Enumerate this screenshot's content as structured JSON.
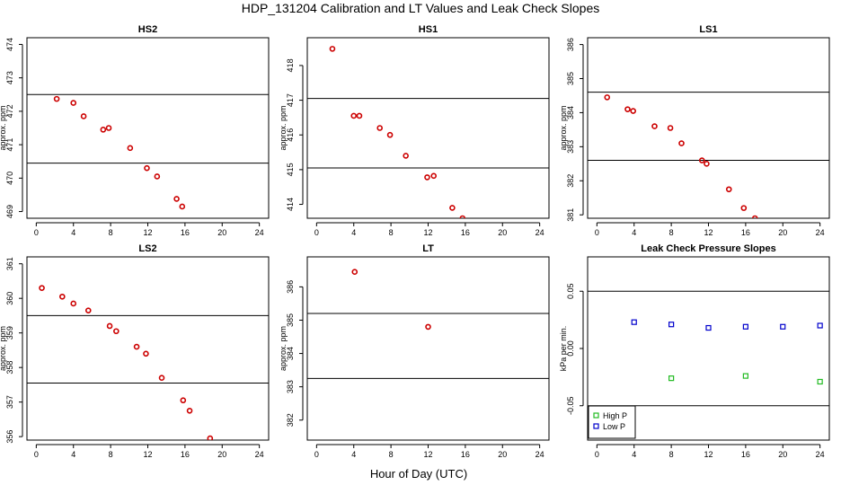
{
  "title": "HDP_131204  Calibration and LT Values and Leak Check Slopes",
  "xlabel": "Hour of Day (UTC)",
  "colors": {
    "calib": "#cc0000",
    "high_p": "#22bb22",
    "low_p": "#0000cc"
  },
  "chart_data": [
    {
      "id": "hs2",
      "type": "scatter",
      "title": "HS2",
      "ylabel": "approx. ppm",
      "xlim": [
        -1,
        25
      ],
      "ylim": [
        468.8,
        474.2
      ],
      "xticks": [
        0,
        4,
        8,
        12,
        16,
        20,
        24
      ],
      "yticks": [
        469,
        470,
        471,
        472,
        473,
        474
      ],
      "hlines": [
        470.45,
        472.5
      ],
      "series": [
        {
          "color": "#cc0000",
          "x": [
            2.2,
            4.0,
            5.1,
            7.2,
            7.8,
            10.1,
            11.9,
            13.0,
            15.1,
            15.7
          ],
          "y": [
            472.37,
            472.25,
            471.85,
            471.45,
            471.5,
            470.9,
            470.3,
            470.05,
            469.38,
            469.15
          ]
        }
      ]
    },
    {
      "id": "hs1",
      "type": "scatter",
      "title": "HS1",
      "ylabel": "approx. ppm",
      "xlim": [
        -1,
        25
      ],
      "ylim": [
        413.6,
        418.8
      ],
      "xticks": [
        0,
        4,
        8,
        12,
        16,
        20,
        24
      ],
      "yticks": [
        414,
        415,
        416,
        417,
        418
      ],
      "hlines": [
        415.05,
        417.05
      ],
      "series": [
        {
          "color": "#cc0000",
          "x": [
            1.7,
            4.0,
            4.6,
            6.8,
            7.9,
            9.6,
            11.9,
            12.6,
            14.6,
            15.7
          ],
          "y": [
            418.48,
            416.55,
            416.55,
            416.2,
            416.0,
            415.4,
            414.78,
            414.82,
            413.9,
            413.6
          ]
        }
      ]
    },
    {
      "id": "ls1",
      "type": "scatter",
      "title": "LS1",
      "ylabel": "approx. ppm",
      "xlim": [
        -1,
        25
      ],
      "ylim": [
        380.9,
        386.2
      ],
      "xticks": [
        0,
        4,
        8,
        12,
        16,
        20,
        24
      ],
      "yticks": [
        381,
        382,
        383,
        384,
        385,
        386
      ],
      "hlines": [
        382.6,
        384.6
      ],
      "series": [
        {
          "color": "#cc0000",
          "x": [
            1.1,
            3.3,
            3.9,
            6.2,
            7.9,
            9.1,
            11.3,
            11.8,
            14.2,
            15.8,
            17.0
          ],
          "y": [
            384.45,
            384.1,
            384.05,
            383.6,
            383.55,
            383.1,
            382.6,
            382.5,
            381.75,
            381.2,
            380.9
          ]
        }
      ]
    },
    {
      "id": "ls2",
      "type": "scatter",
      "title": "LS2",
      "ylabel": "approx. ppm",
      "xlim": [
        -1,
        25
      ],
      "ylim": [
        355.9,
        361.2
      ],
      "xticks": [
        0,
        4,
        8,
        12,
        16,
        20,
        24
      ],
      "yticks": [
        356,
        357,
        358,
        359,
        360,
        361
      ],
      "hlines": [
        357.55,
        359.5
      ],
      "series": [
        {
          "color": "#cc0000",
          "x": [
            0.6,
            2.8,
            4.0,
            5.6,
            7.9,
            8.6,
            10.8,
            11.8,
            13.5,
            15.8,
            16.5,
            18.7
          ],
          "y": [
            360.3,
            360.05,
            359.85,
            359.65,
            359.2,
            359.05,
            358.6,
            358.4,
            357.7,
            357.05,
            356.75,
            355.95
          ]
        }
      ]
    },
    {
      "id": "lt",
      "type": "scatter",
      "title": "LT",
      "ylabel": "approx. ppm",
      "xlim": [
        -1,
        25
      ],
      "ylim": [
        381.4,
        386.9
      ],
      "xticks": [
        0,
        4,
        8,
        12,
        16,
        20,
        24
      ],
      "yticks": [
        382,
        383,
        384,
        385,
        386
      ],
      "hlines": [
        383.25,
        385.2
      ],
      "series": [
        {
          "color": "#cc0000",
          "x": [
            4.1,
            12.0
          ],
          "y": [
            386.45,
            384.8
          ]
        }
      ]
    },
    {
      "id": "leak",
      "type": "scatter",
      "title": "Leak Check Pressure Slopes",
      "ylabel": "kPa per min.",
      "xlim": [
        -1,
        25
      ],
      "ylim": [
        -0.08,
        0.08
      ],
      "xticks": [
        0,
        4,
        8,
        12,
        16,
        20,
        24
      ],
      "yticks": [
        -0.05,
        0.0,
        0.05
      ],
      "ytick_labels": [
        "-0.05",
        "0.00",
        "0.05"
      ],
      "hlines": [
        -0.05,
        0.05
      ],
      "legend": {
        "position": "bottom-left",
        "entries": [
          "High P",
          "Low P"
        ]
      },
      "series": [
        {
          "name": "High P",
          "color": "#22bb22",
          "x": [
            8,
            16,
            24
          ],
          "y": [
            -0.026,
            -0.024,
            -0.029
          ]
        },
        {
          "name": "Low P",
          "color": "#0000cc",
          "x": [
            4,
            8,
            12,
            16,
            20,
            24
          ],
          "y": [
            0.023,
            0.021,
            0.018,
            0.019,
            0.019,
            0.02
          ]
        }
      ]
    }
  ]
}
